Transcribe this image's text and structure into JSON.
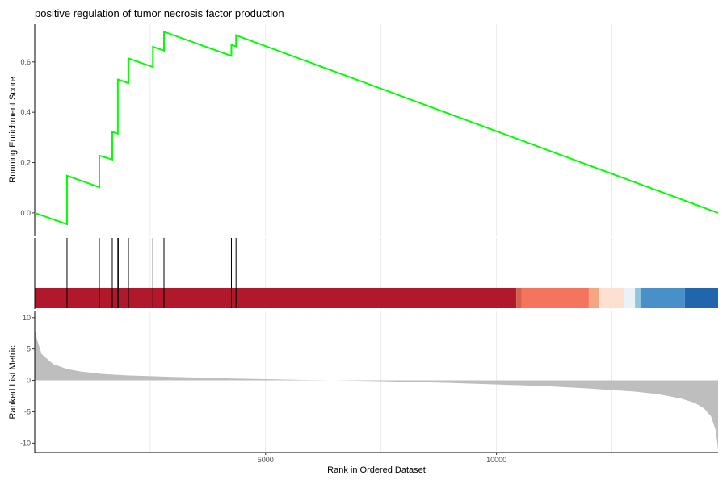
{
  "chart_data": [
    {
      "panel": "running-enrichment-score",
      "type": "line",
      "title": "positive regulation of tumor necrosis factor production",
      "ylabel": "Running Enrichment Score",
      "xlim": [
        1,
        14800
      ],
      "ylim": [
        -0.09,
        0.75
      ],
      "y_ticks": [
        0.0,
        0.2,
        0.4,
        0.6
      ],
      "y_tick_labels": [
        "0.0",
        "0.2",
        "0.4",
        "0.6"
      ],
      "x_gridlines": [
        2500,
        5000,
        7500,
        10000,
        12500
      ],
      "line_color": "#00ff00",
      "series": [
        {
          "x": [
            1,
            700,
            700,
            1400,
            1400,
            1680,
            1680,
            1800,
            1800,
            1810,
            1810,
            2030,
            2030,
            2560,
            2560,
            2800,
            2800,
            4260,
            4260,
            4360,
            4360,
            14800
          ],
          "y": [
            0.0,
            -0.045,
            0.148,
            0.102,
            0.228,
            0.212,
            0.322,
            0.315,
            0.53,
            0.53,
            0.53,
            0.516,
            0.614,
            0.58,
            0.66,
            0.645,
            0.72,
            0.624,
            0.668,
            0.662,
            0.706,
            0.0
          ]
        }
      ]
    },
    {
      "panel": "gene-hits",
      "type": "scatter",
      "hit_positions": [
        700,
        1400,
        1680,
        1800,
        1810,
        2030,
        2560,
        2800,
        4260,
        4360
      ],
      "rank_color_bands": [
        {
          "from": 1,
          "to": 10430,
          "color": "#b2182b"
        },
        {
          "from": 10430,
          "to": 10540,
          "color": "#d6604d"
        },
        {
          "from": 10540,
          "to": 12000,
          "color": "#f4745e"
        },
        {
          "from": 12000,
          "to": 12230,
          "color": "#f4a582"
        },
        {
          "from": 12230,
          "to": 12760,
          "color": "#fde0d2"
        },
        {
          "from": 12760,
          "to": 13000,
          "color": "#eaf2f8"
        },
        {
          "from": 13000,
          "to": 13120,
          "color": "#92c5de"
        },
        {
          "from": 13120,
          "to": 14080,
          "color": "#4a90c8"
        },
        {
          "from": 14080,
          "to": 14800,
          "color": "#2166ac"
        }
      ]
    },
    {
      "panel": "ranked-list-metric",
      "type": "area",
      "xlabel": "Rank in Ordered Dataset",
      "ylabel": "Ranked List Metric",
      "xlim": [
        1,
        14800
      ],
      "ylim": [
        -11.5,
        11
      ],
      "x_ticks": [
        5000,
        10000
      ],
      "x_tick_labels": [
        "5000",
        "10000"
      ],
      "y_ticks": [
        10,
        5,
        0,
        -5,
        -10
      ],
      "y_tick_labels": [
        "10",
        "5",
        "0",
        "-5",
        "-10"
      ],
      "fill_color": "#bebebe",
      "series": [
        {
          "x": [
            1,
            50,
            150,
            400,
            700,
            1000,
            1500,
            2000,
            3000,
            4000,
            5000,
            6000,
            7000,
            8000,
            9000,
            10000,
            11000,
            12000,
            13000,
            13500,
            14000,
            14300,
            14500,
            14650,
            14750,
            14800
          ],
          "y": [
            8.2,
            6.5,
            4.2,
            2.6,
            1.8,
            1.4,
            1.0,
            0.8,
            0.55,
            0.35,
            0.2,
            0.05,
            -0.05,
            -0.2,
            -0.4,
            -0.65,
            -0.9,
            -1.3,
            -1.8,
            -2.2,
            -2.9,
            -3.6,
            -4.5,
            -5.8,
            -8.0,
            -11.0
          ]
        }
      ]
    }
  ]
}
